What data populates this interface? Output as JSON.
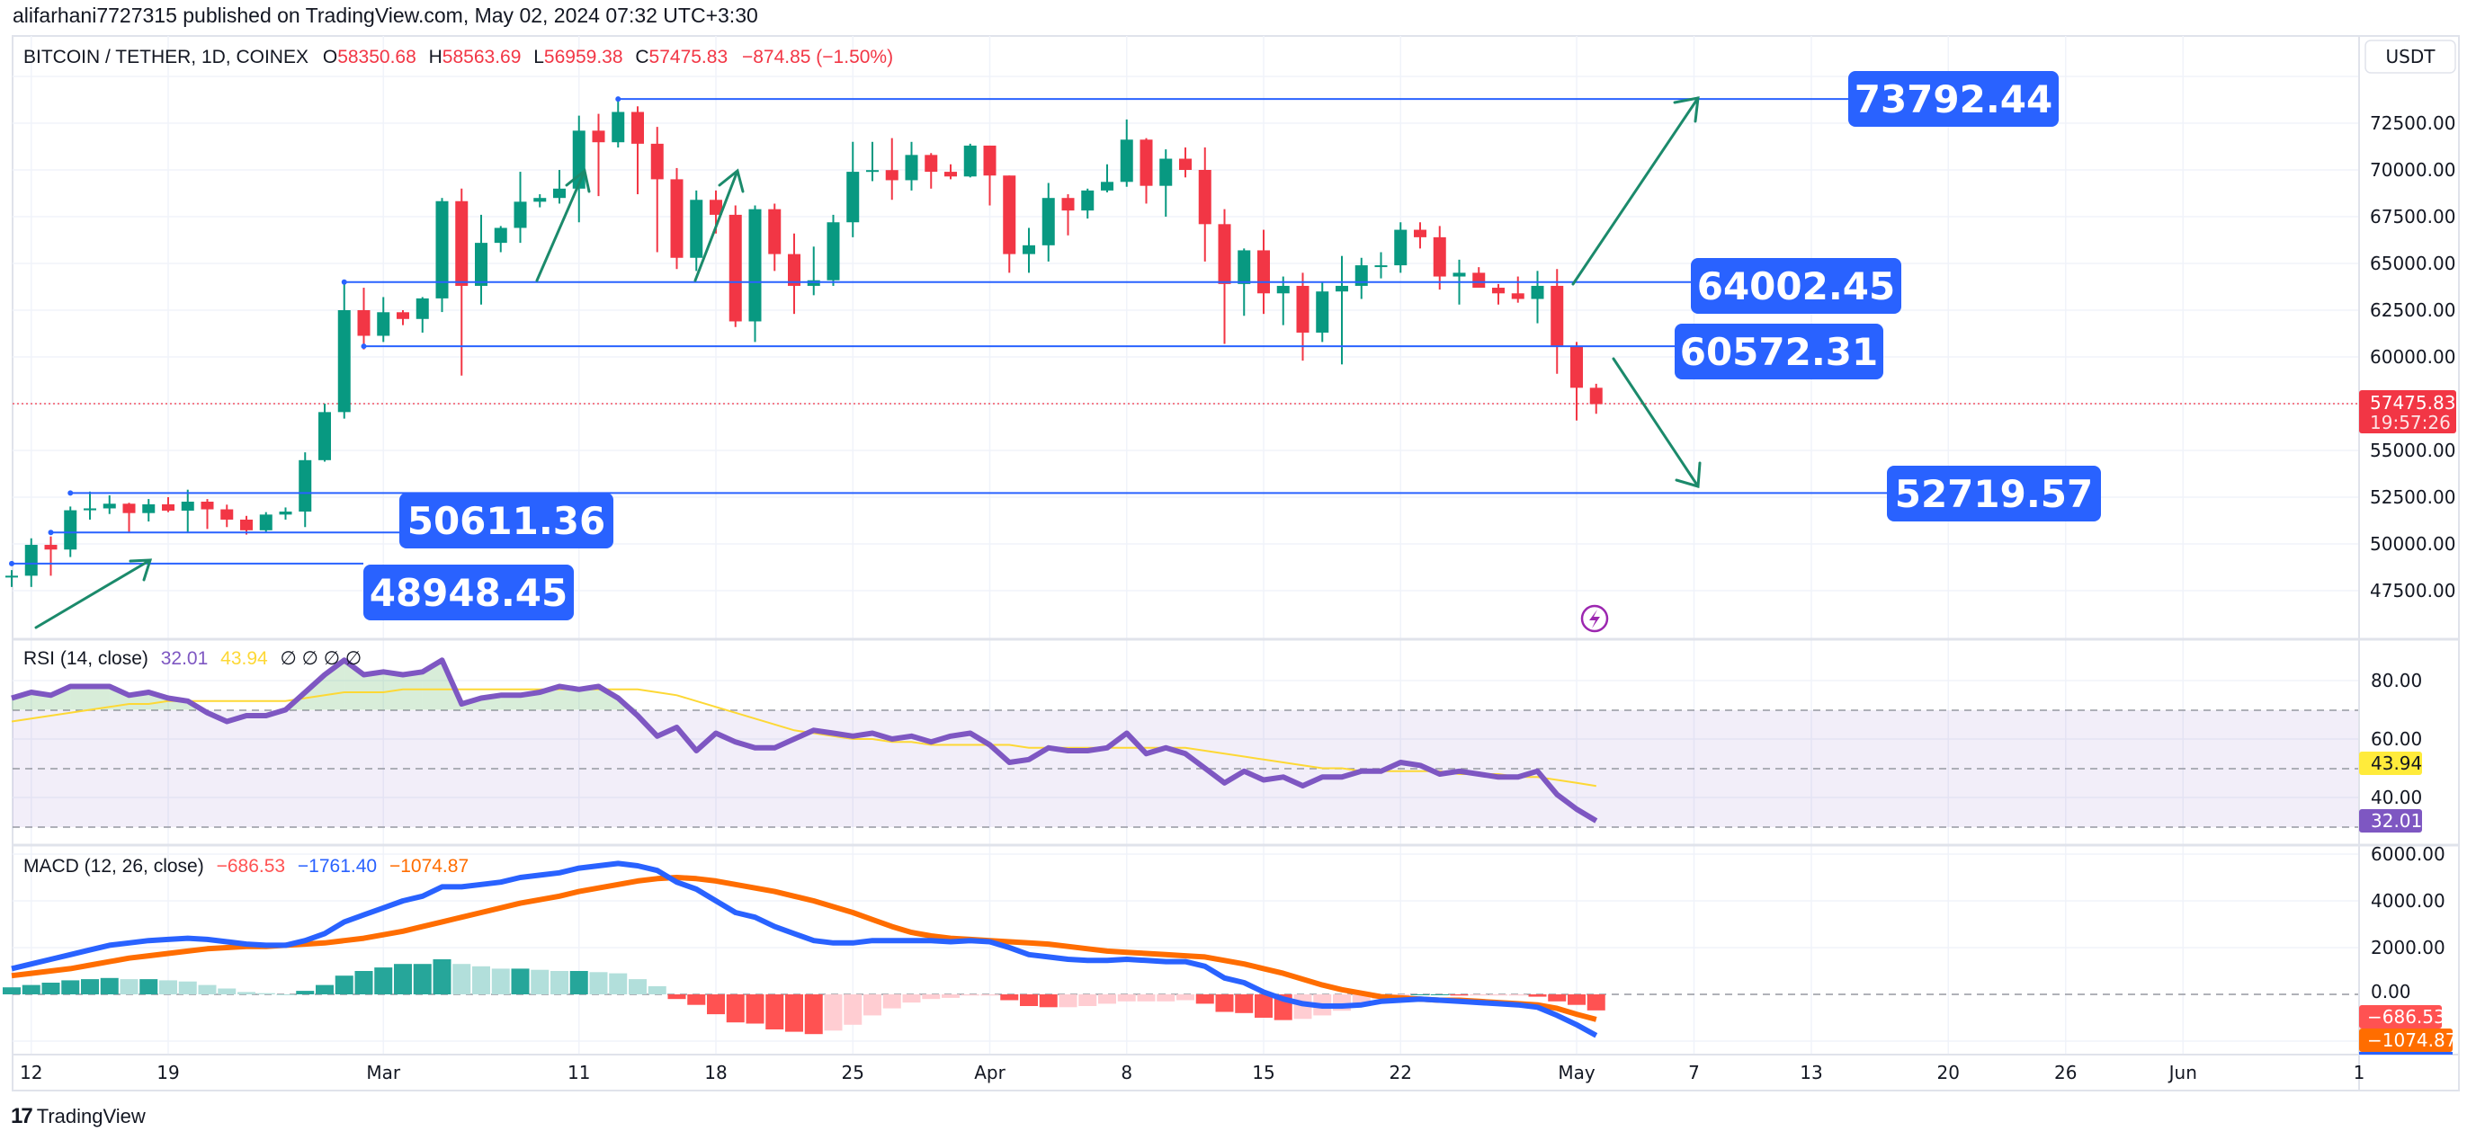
{
  "publisher": "alifarhani7727315 published on TradingView.com, May 02, 2024 07:32 UTC+3:30",
  "header": {
    "symbol": "BITCOIN / TETHER, 1D, COINEX",
    "o_label": "O",
    "o": "58350.68",
    "h_label": "H",
    "h": "58563.69",
    "l_label": "L",
    "l": "56959.38",
    "c_label": "C",
    "c": "57475.83",
    "change": "−874.85 (−1.50%)"
  },
  "currency_button": "USDT",
  "price_axis": [
    "72500.00",
    "70000.00",
    "67500.00",
    "65000.00",
    "62500.00",
    "60000.00",
    "55000.00",
    "52500.00",
    "50000.00",
    "47500.00"
  ],
  "last_price": {
    "value": "57475.83",
    "countdown": "19:57:26"
  },
  "levels": [
    {
      "label": "73792.44"
    },
    {
      "label": "64002.45"
    },
    {
      "label": "60572.31"
    },
    {
      "label": "52719.57"
    },
    {
      "label": "50611.36"
    },
    {
      "label": "48948.45"
    }
  ],
  "rsi": {
    "title": "RSI (14, close)",
    "value": "32.01",
    "ma": "43.94",
    "extras": "∅ ∅ ∅ ∅",
    "axis": [
      "80.00",
      "60.00",
      "40.00"
    ]
  },
  "macd": {
    "title": "MACD (12, 26, close)",
    "hist": "−686.53",
    "macd": "−1761.40",
    "signal": "−1074.87",
    "axis": [
      "6000.00",
      "4000.00",
      "2000.00",
      "0.00"
    ]
  },
  "time_axis": [
    {
      "t": "12",
      "d": 1
    },
    {
      "t": "19",
      "d": 8
    },
    {
      "t": "Mar",
      "d": 19
    },
    {
      "t": "11",
      "d": 29
    },
    {
      "t": "18",
      "d": 36
    },
    {
      "t": "25",
      "d": 43
    },
    {
      "t": "Apr",
      "d": 50
    },
    {
      "t": "8",
      "d": 57
    },
    {
      "t": "15",
      "d": 64
    },
    {
      "t": "22",
      "d": 71
    },
    {
      "t": "May",
      "d": 80
    },
    {
      "t": "7",
      "d": 86
    },
    {
      "t": "13",
      "d": 92
    },
    {
      "t": "20",
      "d": 99
    },
    {
      "t": "26",
      "d": 105
    },
    {
      "t": "Jun",
      "d": 111
    },
    {
      "t": "1",
      "d": 120
    }
  ],
  "footer": {
    "logo": "17",
    "brand": "TradingView"
  },
  "colors": {
    "up": "#089981",
    "down": "#f23645",
    "line": "#2962ff",
    "arrow": "#1b8a6b",
    "rsi": "#7e57c2",
    "rsi_ma": "#fdd835",
    "macd": "#2962ff",
    "signal": "#ff6d00"
  },
  "chart_data": {
    "type": "candlestick",
    "start_date": "2024-02-11",
    "ohlc": [
      [
        48300,
        48600,
        47700,
        48300
      ],
      [
        48300,
        50300,
        47700,
        49950
      ],
      [
        49950,
        50400,
        48300,
        49700
      ],
      [
        49700,
        52000,
        49300,
        51800
      ],
      [
        51800,
        52800,
        51300,
        51900
      ],
      [
        51900,
        52600,
        51600,
        52150
      ],
      [
        52150,
        52200,
        50600,
        51650
      ],
      [
        51650,
        52400,
        51200,
        52120
      ],
      [
        52120,
        52500,
        51700,
        51780
      ],
      [
        51780,
        52900,
        50600,
        52260
      ],
      [
        52260,
        52400,
        50800,
        51850
      ],
      [
        51850,
        52100,
        50900,
        51300
      ],
      [
        51300,
        51500,
        50500,
        50730
      ],
      [
        50730,
        51700,
        50600,
        51570
      ],
      [
        51570,
        51950,
        51300,
        51730
      ],
      [
        51730,
        54900,
        50900,
        54480
      ],
      [
        54480,
        57500,
        54400,
        57050
      ],
      [
        57050,
        64000,
        56700,
        62500
      ],
      [
        62500,
        63700,
        60400,
        61130
      ],
      [
        61130,
        63200,
        60800,
        62390
      ],
      [
        62390,
        62500,
        61700,
        62030
      ],
      [
        62030,
        63200,
        61300,
        63130
      ],
      [
        63130,
        68500,
        62400,
        68330
      ],
      [
        68330,
        69000,
        59000,
        63800
      ],
      [
        63800,
        67600,
        62800,
        66100
      ],
      [
        66100,
        67000,
        65600,
        66900
      ],
      [
        66900,
        69900,
        66100,
        68300
      ],
      [
        68300,
        68700,
        68000,
        68500
      ],
      [
        68500,
        70000,
        68200,
        69000
      ],
      [
        69000,
        72900,
        67200,
        72100
      ],
      [
        72100,
        73000,
        68600,
        71480
      ],
      [
        71480,
        73792,
        71200,
        73100
      ],
      [
        73100,
        73400,
        68700,
        71400
      ],
      [
        71400,
        72300,
        65600,
        69500
      ],
      [
        69500,
        70100,
        64700,
        65300
      ],
      [
        65300,
        68900,
        64600,
        68400
      ],
      [
        68400,
        68900,
        66600,
        67600
      ],
      [
        67600,
        68100,
        61600,
        61900
      ],
      [
        61900,
        68100,
        60800,
        67900
      ],
      [
        67900,
        68200,
        64600,
        65500
      ],
      [
        65500,
        66600,
        62300,
        63800
      ],
      [
        63800,
        65900,
        63300,
        64100
      ],
      [
        64100,
        67600,
        63800,
        67200
      ],
      [
        67200,
        71500,
        66400,
        69900
      ],
      [
        69900,
        71500,
        69400,
        69990
      ],
      [
        69990,
        71700,
        68400,
        69450
      ],
      [
        69450,
        71500,
        68900,
        70800
      ],
      [
        70800,
        70900,
        69000,
        69900
      ],
      [
        69900,
        70300,
        69500,
        69650
      ],
      [
        69650,
        71400,
        69600,
        71300
      ],
      [
        71300,
        71300,
        68100,
        69700
      ],
      [
        69700,
        69700,
        64500,
        65500
      ],
      [
        65500,
        66900,
        64500,
        65970
      ],
      [
        65970,
        69300,
        65100,
        68500
      ],
      [
        68500,
        68700,
        66500,
        67830
      ],
      [
        67830,
        69000,
        67400,
        68900
      ],
      [
        68900,
        70300,
        68800,
        69360
      ],
      [
        69360,
        72700,
        69100,
        71620
      ],
      [
        71620,
        71700,
        68200,
        69150
      ],
      [
        69150,
        71100,
        67500,
        70600
      ],
      [
        70600,
        71200,
        69600,
        70000
      ],
      [
        70000,
        71200,
        65100,
        67100
      ],
      [
        67100,
        67900,
        60700,
        63900
      ],
      [
        63900,
        65800,
        62200,
        65700
      ],
      [
        65700,
        66800,
        62300,
        63400
      ],
      [
        63400,
        64300,
        61700,
        63800
      ],
      [
        63800,
        64500,
        59800,
        61300
      ],
      [
        61300,
        64000,
        60800,
        63500
      ],
      [
        63500,
        65400,
        59600,
        63800
      ],
      [
        63800,
        65300,
        63100,
        64900
      ],
      [
        64900,
        65600,
        64200,
        64900
      ],
      [
        64900,
        67200,
        64500,
        66800
      ],
      [
        66800,
        67200,
        65800,
        66400
      ],
      [
        66400,
        67000,
        63600,
        64300
      ],
      [
        64300,
        65200,
        62800,
        64500
      ],
      [
        64500,
        64800,
        63800,
        63700
      ],
      [
        63700,
        63900,
        62800,
        63400
      ],
      [
        63400,
        64300,
        62900,
        63100
      ],
      [
        63100,
        64600,
        61800,
        63800
      ],
      [
        63800,
        64700,
        59100,
        60600
      ],
      [
        60600,
        60800,
        56600,
        58350
      ],
      [
        58350,
        58563.69,
        56959.38,
        57475.83
      ]
    ],
    "price_range": [
      46000,
      74500
    ],
    "levels": [
      {
        "value": 73792.44,
        "from": 31,
        "to": 49
      },
      {
        "value": 64002.45,
        "from": 17,
        "to": 49
      },
      {
        "value": 60572.31,
        "from": 18,
        "to": 48
      },
      {
        "value": 52719.57,
        "from": 3,
        "to": 54
      },
      {
        "value": 50611.36,
        "from": 2,
        "to": 11
      },
      {
        "value": 48948.45,
        "from": 0,
        "to": 10
      }
    ],
    "rsi": [
      74,
      76,
      75,
      78,
      78,
      78,
      75,
      76,
      74,
      73,
      69,
      66,
      68,
      68,
      70,
      76,
      82,
      87,
      82,
      83,
      82,
      83,
      87,
      72,
      74,
      75,
      75,
      76,
      78,
      77,
      78,
      74,
      68,
      61,
      64,
      56,
      62,
      59,
      57,
      57,
      60,
      63,
      62,
      61,
      62,
      60,
      61,
      59,
      61,
      62,
      58,
      52,
      53,
      57,
      56,
      56,
      57,
      62,
      55,
      57,
      55,
      50,
      45,
      49,
      46,
      47,
      44,
      47,
      47,
      49,
      49,
      52,
      51,
      48,
      49,
      48,
      47,
      47,
      49,
      41,
      36,
      32.01
    ],
    "rsi_ma": [
      66,
      67,
      68,
      69,
      70,
      71,
      72,
      72,
      73,
      73,
      73,
      73,
      73,
      73,
      73,
      74,
      75,
      76,
      76,
      76,
      77,
      77,
      77,
      77,
      77,
      77,
      77,
      77,
      77,
      77,
      77,
      77,
      77,
      76,
      75,
      73,
      71,
      69,
      67,
      65,
      63,
      62,
      61,
      60,
      60,
      59,
      59,
      58,
      58,
      58,
      58,
      58,
      57,
      57,
      57,
      57,
      57,
      57,
      57,
      57,
      57,
      56,
      55,
      54,
      53,
      52,
      51,
      50,
      50,
      49,
      49,
      49,
      49,
      49,
      48,
      48,
      48,
      47,
      47,
      46,
      45,
      43.94
    ],
    "rsi_range": [
      25,
      95
    ],
    "macd": [
      1100,
      1300,
      1500,
      1700,
      1900,
      2100,
      2200,
      2300,
      2350,
      2400,
      2350,
      2250,
      2150,
      2100,
      2100,
      2300,
      2600,
      3100,
      3400,
      3700,
      4000,
      4200,
      4600,
      4600,
      4700,
      4800,
      5000,
      5100,
      5200,
      5400,
      5500,
      5600,
      5500,
      5300,
      4800,
      4500,
      4000,
      3500,
      3300,
      2900,
      2600,
      2300,
      2200,
      2200,
      2300,
      2300,
      2300,
      2300,
      2250,
      2300,
      2250,
      2000,
      1700,
      1600,
      1500,
      1450,
      1450,
      1500,
      1450,
      1400,
      1400,
      1200,
      700,
      500,
      100,
      -200,
      -400,
      -500,
      -500,
      -450,
      -300,
      -250,
      -200,
      -250,
      -300,
      -350,
      -400,
      -450,
      -550,
      -900,
      -1300,
      -1761.4
    ],
    "signal": [
      800,
      900,
      1000,
      1100,
      1250,
      1400,
      1550,
      1650,
      1750,
      1850,
      1950,
      2000,
      2050,
      2050,
      2100,
      2150,
      2200,
      2300,
      2400,
      2550,
      2700,
      2900,
      3100,
      3300,
      3500,
      3700,
      3900,
      4050,
      4200,
      4400,
      4550,
      4700,
      4850,
      4950,
      5000,
      4950,
      4850,
      4700,
      4550,
      4400,
      4200,
      4000,
      3750,
      3500,
      3200,
      2900,
      2650,
      2500,
      2400,
      2350,
      2300,
      2250,
      2200,
      2150,
      2050,
      1950,
      1850,
      1800,
      1750,
      1700,
      1650,
      1600,
      1450,
      1300,
      1100,
      900,
      650,
      400,
      200,
      50,
      -100,
      -150,
      -200,
      -250,
      -250,
      -300,
      -350,
      -400,
      -450,
      -600,
      -850,
      -1074.87
    ]
  }
}
